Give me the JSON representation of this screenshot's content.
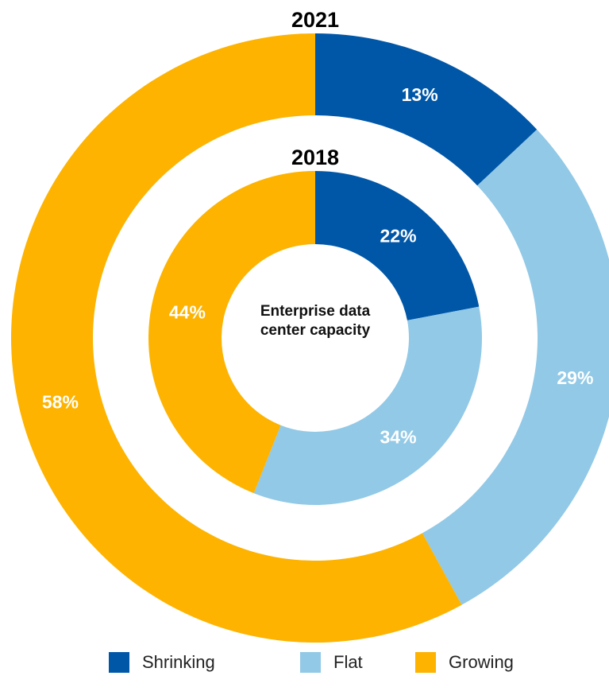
{
  "chart_data": {
    "type": "donut",
    "categories": [
      "Shrinking",
      "Flat",
      "Growing"
    ],
    "colors": [
      "#0057a8",
      "#92c9e6",
      "#fdb300"
    ],
    "series": [
      {
        "name": "2021",
        "values": [
          13,
          29,
          58
        ],
        "value_labels": [
          "13%",
          "29%",
          "58%"
        ]
      },
      {
        "name": "2018",
        "values": [
          22,
          34,
          44
        ],
        "value_labels": [
          "22%",
          "34%",
          "44%"
        ]
      }
    ],
    "center_label": "Enterprise data center capacity",
    "legend": "bottom"
  }
}
